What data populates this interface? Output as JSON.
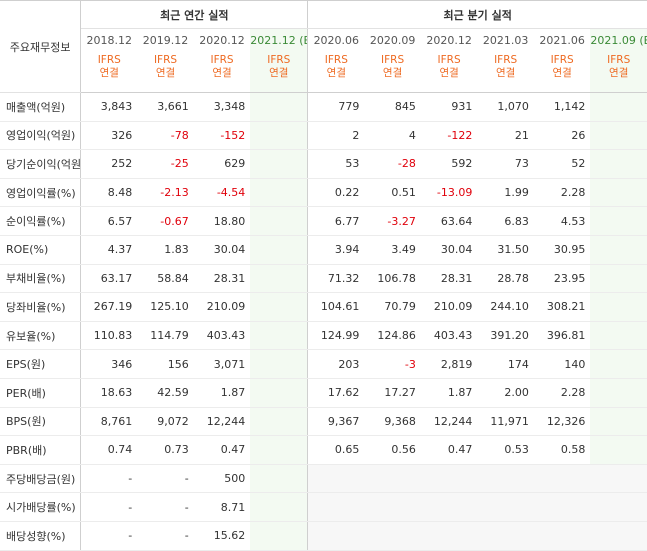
{
  "header": {
    "label": "주요재무정보",
    "annual_title": "최근 연간 실적",
    "quarter_title": "최근 분기 실적",
    "annual_periods": [
      "2018.12",
      "2019.12",
      "2020.12",
      "2021.12 (E)"
    ],
    "quarter_periods": [
      "2020.06",
      "2020.09",
      "2020.12",
      "2021.03",
      "2021.06",
      "2021.09 (E)"
    ],
    "basis_top": "IFRS",
    "basis_bottom": "연결"
  },
  "rows": [
    {
      "label": "매출액(억원)",
      "annual": [
        "3,843",
        "3,661",
        "3,348",
        ""
      ],
      "quarter": [
        "779",
        "845",
        "931",
        "1,070",
        "1,142",
        ""
      ]
    },
    {
      "label": "영업이익(억원)",
      "annual": [
        "326",
        "-78",
        "-152",
        ""
      ],
      "quarter": [
        "2",
        "4",
        "-122",
        "21",
        "26",
        ""
      ]
    },
    {
      "label": "당기순이익(억원)",
      "annual": [
        "252",
        "-25",
        "629",
        ""
      ],
      "quarter": [
        "53",
        "-28",
        "592",
        "73",
        "52",
        ""
      ]
    },
    {
      "label": "영업이익률(%)",
      "annual": [
        "8.48",
        "-2.13",
        "-4.54",
        ""
      ],
      "quarter": [
        "0.22",
        "0.51",
        "-13.09",
        "1.99",
        "2.28",
        ""
      ]
    },
    {
      "label": "순이익률(%)",
      "annual": [
        "6.57",
        "-0.67",
        "18.80",
        ""
      ],
      "quarter": [
        "6.77",
        "-3.27",
        "63.64",
        "6.83",
        "4.53",
        ""
      ]
    },
    {
      "label": "ROE(%)",
      "annual": [
        "4.37",
        "1.83",
        "30.04",
        ""
      ],
      "quarter": [
        "3.94",
        "3.49",
        "30.04",
        "31.50",
        "30.95",
        ""
      ]
    },
    {
      "label": "부채비율(%)",
      "annual": [
        "63.17",
        "58.84",
        "28.31",
        ""
      ],
      "quarter": [
        "71.32",
        "106.78",
        "28.31",
        "28.78",
        "23.95",
        ""
      ]
    },
    {
      "label": "당좌비율(%)",
      "annual": [
        "267.19",
        "125.10",
        "210.09",
        ""
      ],
      "quarter": [
        "104.61",
        "70.79",
        "210.09",
        "244.10",
        "308.21",
        ""
      ]
    },
    {
      "label": "유보율(%)",
      "annual": [
        "110.83",
        "114.79",
        "403.43",
        ""
      ],
      "quarter": [
        "124.99",
        "124.86",
        "403.43",
        "391.20",
        "396.81",
        ""
      ]
    },
    {
      "label": "EPS(원)",
      "annual": [
        "346",
        "156",
        "3,071",
        ""
      ],
      "quarter": [
        "203",
        "-3",
        "2,819",
        "174",
        "140",
        ""
      ]
    },
    {
      "label": "PER(배)",
      "annual": [
        "18.63",
        "42.59",
        "1.87",
        ""
      ],
      "quarter": [
        "17.62",
        "17.27",
        "1.87",
        "2.00",
        "2.28",
        ""
      ]
    },
    {
      "label": "BPS(원)",
      "annual": [
        "8,761",
        "9,072",
        "12,244",
        ""
      ],
      "quarter": [
        "9,367",
        "9,368",
        "12,244",
        "11,971",
        "12,326",
        ""
      ]
    },
    {
      "label": "PBR(배)",
      "annual": [
        "0.74",
        "0.73",
        "0.47",
        ""
      ],
      "quarter": [
        "0.65",
        "0.56",
        "0.47",
        "0.53",
        "0.58",
        ""
      ]
    },
    {
      "label": "주당배당금(원)",
      "annual": [
        "-",
        "-",
        "500",
        ""
      ],
      "quarter": [
        "",
        "",
        "",
        "",
        "",
        ""
      ]
    },
    {
      "label": "시가배당률(%)",
      "annual": [
        "-",
        "-",
        "8.71",
        ""
      ],
      "quarter": [
        "",
        "",
        "",
        "",
        "",
        ""
      ]
    },
    {
      "label": "배당성향(%)",
      "annual": [
        "-",
        "-",
        "15.62",
        ""
      ],
      "quarter": [
        "",
        "",
        "",
        "",
        "",
        ""
      ]
    }
  ],
  "colors": {
    "negative": "#e0000b",
    "basis": "#ee6a22",
    "estimate": "#3a8a36"
  }
}
